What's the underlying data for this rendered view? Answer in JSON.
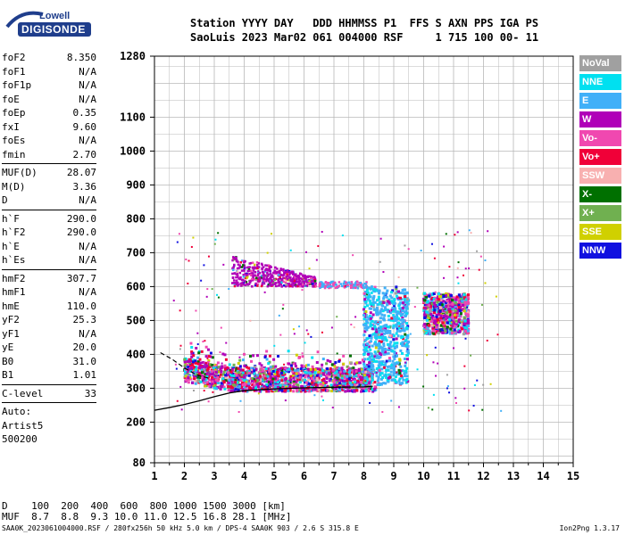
{
  "logo": {
    "top": "Lowell",
    "bottom": "DIGISONDE"
  },
  "header": {
    "line1": "Station YYYY DAY   DDD HHMMSS P1  FFS S AXN PPS IGA PS",
    "line2": "SaoLuis 2023 Mar02 061 004000 RSF     1 715 100 00- 11"
  },
  "params": [
    [
      {
        "name": "foF2",
        "value": "8.350"
      },
      {
        "name": "foF1",
        "value": "N/A"
      },
      {
        "name": "foF1p",
        "value": "N/A"
      },
      {
        "name": "foE",
        "value": "N/A"
      },
      {
        "name": "foEp",
        "value": "0.35"
      },
      {
        "name": "fxI",
        "value": "9.60"
      },
      {
        "name": "foEs",
        "value": "N/A"
      },
      {
        "name": "fmin",
        "value": "2.70"
      }
    ],
    [
      {
        "name": "MUF(D)",
        "value": "28.07"
      },
      {
        "name": "M(D)",
        "value": "3.36"
      },
      {
        "name": "D",
        "value": "N/A"
      }
    ],
    [
      {
        "name": "h`F",
        "value": "290.0"
      },
      {
        "name": "h`F2",
        "value": "290.0"
      },
      {
        "name": "h`E",
        "value": "N/A"
      },
      {
        "name": "h`Es",
        "value": "N/A"
      }
    ],
    [
      {
        "name": "hmF2",
        "value": "307.7"
      },
      {
        "name": "hmF1",
        "value": "N/A"
      },
      {
        "name": "hmE",
        "value": "110.0"
      },
      {
        "name": "yF2",
        "value": "25.3"
      },
      {
        "name": "yF1",
        "value": "N/A"
      },
      {
        "name": "yE",
        "value": "20.0"
      },
      {
        "name": "B0",
        "value": "31.0"
      },
      {
        "name": "B1",
        "value": "1.01"
      }
    ],
    [
      {
        "name": "C-level",
        "value": "33"
      }
    ],
    [
      {
        "name": "Auto:",
        "value": ""
      },
      {
        "name": "Artist5",
        "value": ""
      },
      {
        "name": "500200",
        "value": ""
      }
    ]
  ],
  "legend": [
    {
      "label": "NoVal",
      "color": "#a0a0a0"
    },
    {
      "label": "NNE",
      "color": "#00e0f0"
    },
    {
      "label": "E",
      "color": "#40b0f8"
    },
    {
      "label": "W",
      "color": "#b000b8"
    },
    {
      "label": "Vo-",
      "color": "#f048b0"
    },
    {
      "label": "Vo+",
      "color": "#f00038"
    },
    {
      "label": "SSW",
      "color": "#f8b0b0"
    },
    {
      "label": "X-",
      "color": "#007000"
    },
    {
      "label": "X+",
      "color": "#70b050"
    },
    {
      "label": "SSE",
      "color": "#d0d000"
    },
    {
      "label": "NNW",
      "color": "#1010e0"
    }
  ],
  "chart_data": {
    "type": "scatter",
    "x_ticks": [
      "1",
      "2",
      "3",
      "4",
      "5",
      "6",
      "7",
      "8",
      "9",
      "10",
      "11",
      "12",
      "13",
      "14",
      "15"
    ],
    "y_ticks": [
      "80",
      "200",
      "300",
      "400",
      "500",
      "600",
      "700",
      "800",
      "900",
      "1000",
      "1100",
      "1280"
    ],
    "xlim": [
      1,
      15
    ],
    "ylim": [
      80,
      1280
    ],
    "grid": true,
    "trace_points": [
      [
        1.0,
        235
      ],
      [
        1.5,
        243
      ],
      [
        2.0,
        252
      ],
      [
        2.5,
        263
      ],
      [
        3.0,
        275
      ],
      [
        3.5,
        286
      ],
      [
        4.0,
        293
      ],
      [
        5.0,
        298
      ],
      [
        6.0,
        301
      ],
      [
        7.0,
        303
      ],
      [
        8.0,
        304
      ],
      [
        8.3,
        306
      ]
    ],
    "dashed_trace": [
      [
        1.2,
        405
      ],
      [
        1.6,
        385
      ],
      [
        2.0,
        360
      ],
      [
        2.4,
        340
      ],
      [
        2.8,
        330
      ]
    ],
    "clusters": [
      {
        "x": [
          2.0,
          8.4
        ],
        "y": [
          290,
          390
        ],
        "density": "high"
      },
      {
        "x": [
          3.5,
          6.5
        ],
        "y": [
          600,
          690
        ],
        "density": "medium"
      },
      {
        "x": [
          8.0,
          9.5
        ],
        "y": [
          320,
          600
        ],
        "density": "high"
      },
      {
        "x": [
          10.0,
          11.5
        ],
        "y": [
          460,
          580
        ],
        "density": "high"
      }
    ]
  },
  "bottom": {
    "row1": "D    100  200  400  600  800 1000 1500 3000 [km]",
    "row2": "MUF  8.7  8.8  9.3 10.0 11.0 12.5 16.8 28.1 [MHz]"
  },
  "footer": {
    "left": "SAA0K_2023061004000.RSF / 280fx256h 50 kHz 5.0 km / DPS-4 SAA0K 903 / 2.6 S 315.8 E",
    "right": "Ion2Png 1.3.17"
  }
}
